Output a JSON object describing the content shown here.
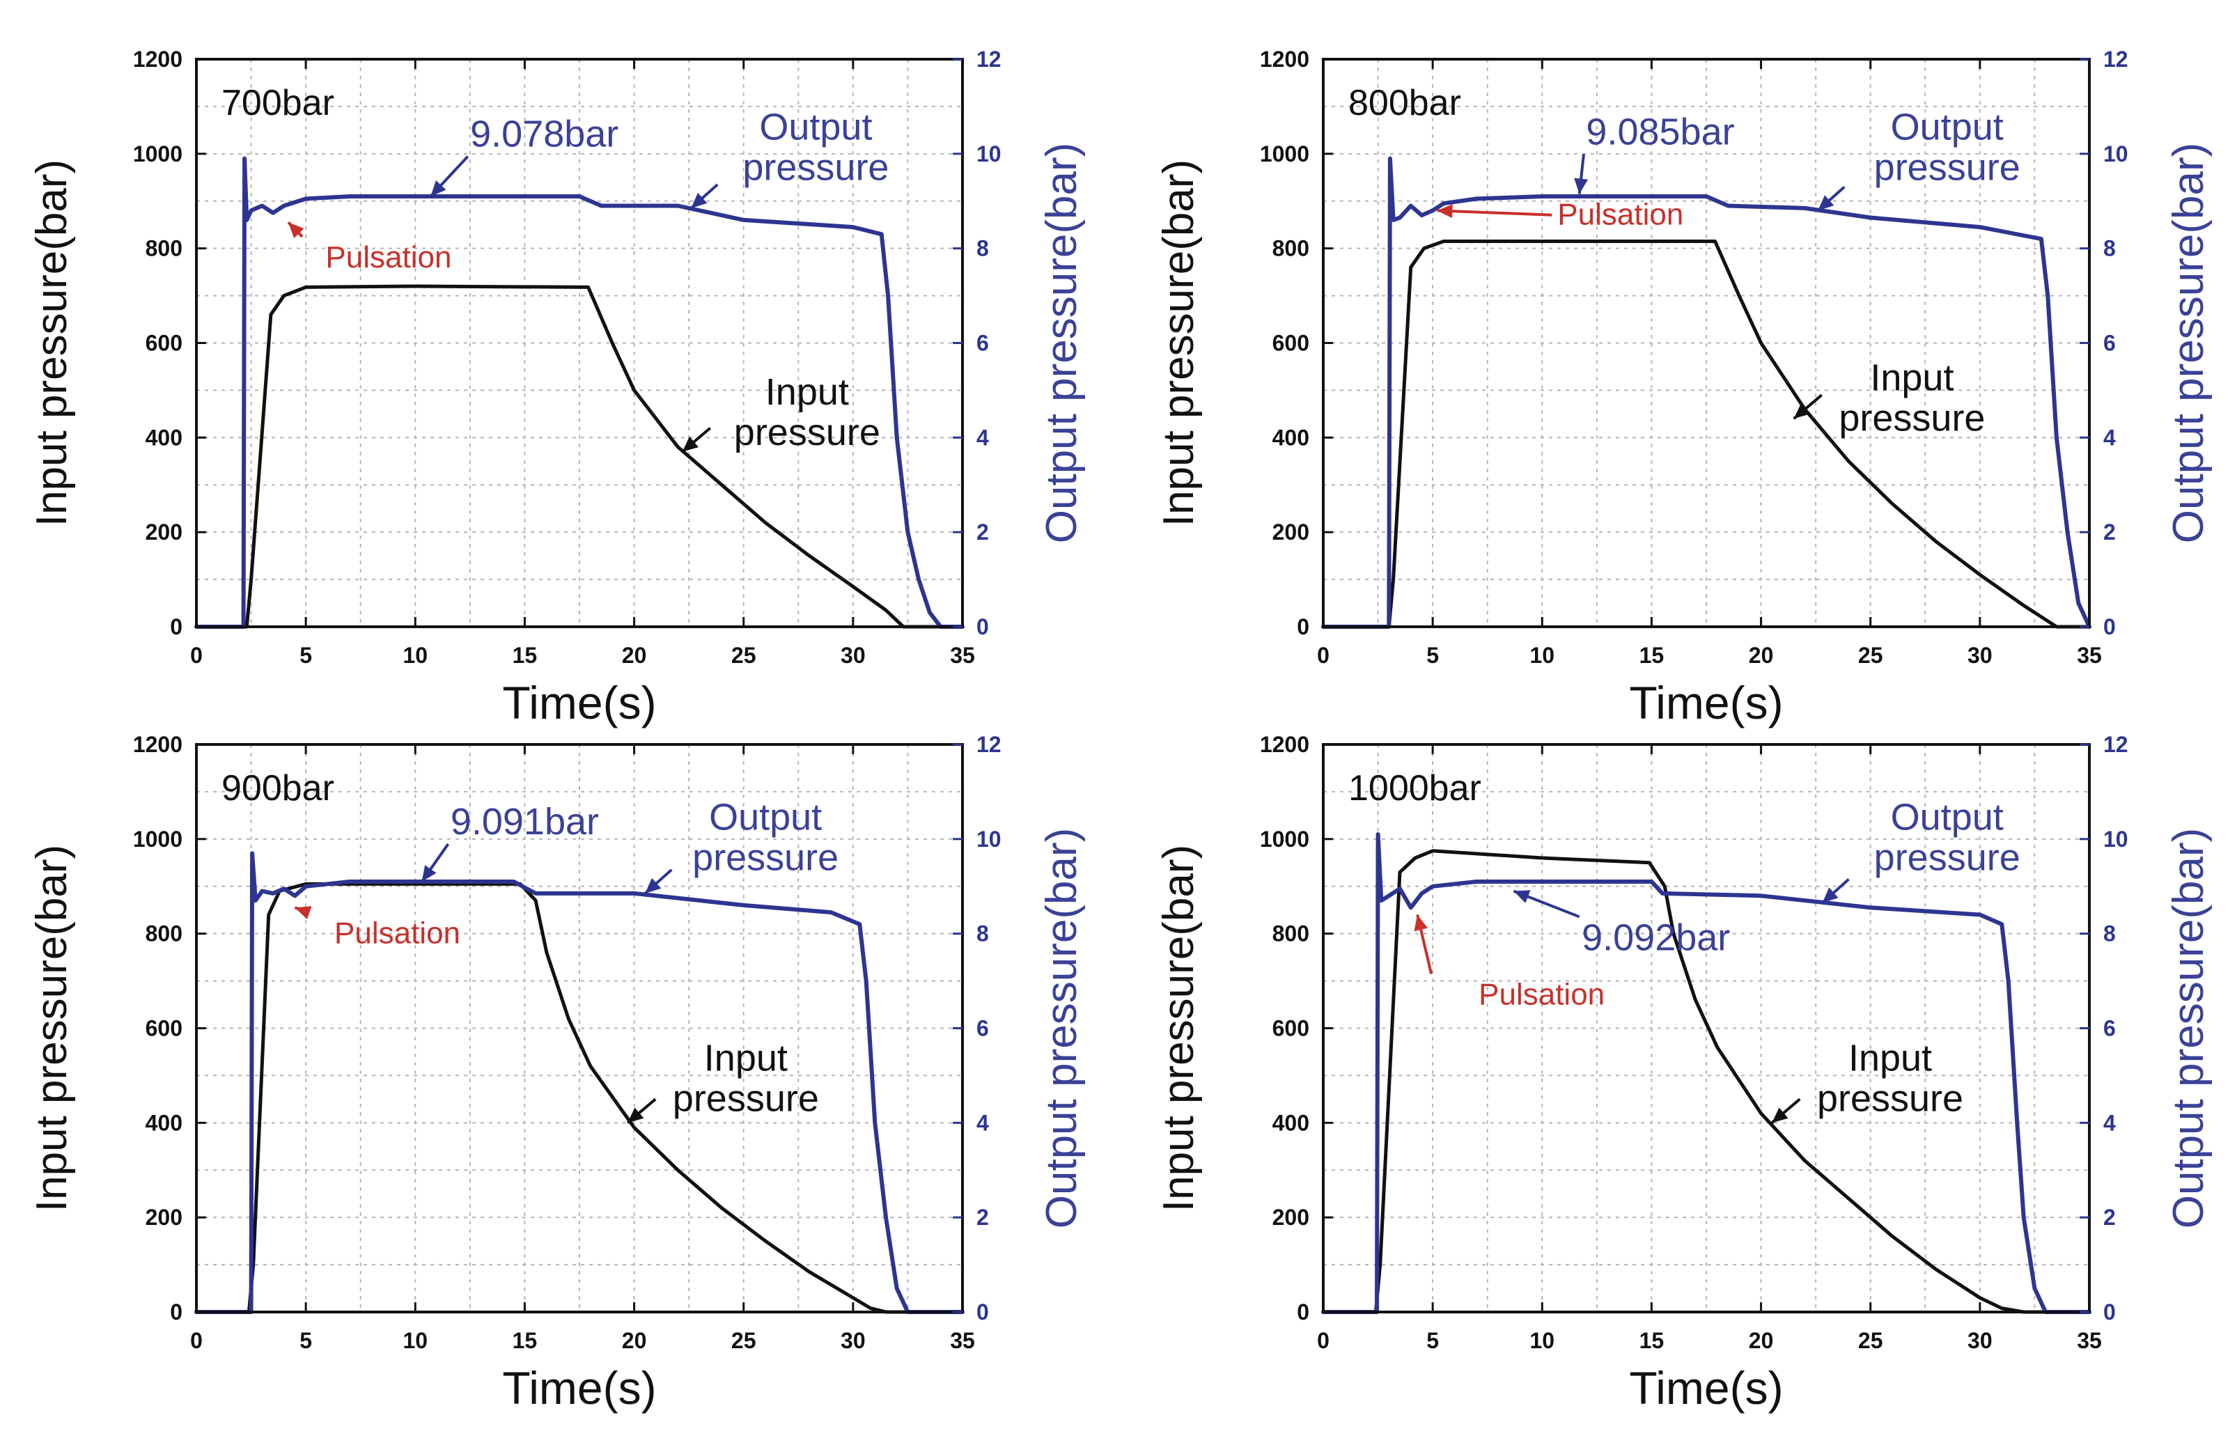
{
  "figure_title": "",
  "chart_data": [
    {
      "type": "line",
      "panel_title": "700bar",
      "xlabel": "Time(s)",
      "ylabel_left": "Input pressure(bar)",
      "ylabel_right": "Output pressure(bar)",
      "xlim": [
        0,
        35
      ],
      "ylim_left": [
        0,
        1200
      ],
      "ylim_right": [
        0,
        12
      ],
      "xticks": [
        "0",
        "5",
        "10",
        "15",
        "20",
        "25",
        "30",
        "35"
      ],
      "yticks_left": [
        "0",
        "200",
        "400",
        "600",
        "800",
        "1000",
        "1200"
      ],
      "yticks_right": [
        "0",
        "2",
        "4",
        "6",
        "8",
        "10",
        "12"
      ],
      "grid": true,
      "colors": {
        "input": "#111111",
        "output": "#2d3590",
        "pulsation": "#c8302a"
      },
      "annotations": {
        "peak_value": {
          "text": "9.078bar",
          "target": [
            10.7,
            9.1
          ],
          "label_pos": [
            15.9,
            10.15
          ]
        },
        "output_label": {
          "line1": "Output",
          "line2": "pressure",
          "target": [
            22.6,
            8.85
          ],
          "label_pos": [
            28.3,
            10.3
          ]
        },
        "pulsation": {
          "text": "Pulsation",
          "target": [
            4.2,
            8.55
          ],
          "label_pos": [
            5.9,
            7.6
          ]
        },
        "input_label": {
          "line1": "Input",
          "line2": "pressure",
          "target": [
            22.2,
            370
          ],
          "label_pos": [
            27.9,
            470
          ]
        }
      },
      "series": [
        {
          "name": "Input pressure",
          "axis": "left",
          "x": [
            0,
            2.3,
            2.5,
            3.4,
            4.0,
            5,
            10,
            17.9,
            19,
            20,
            22,
            24,
            26,
            28,
            30,
            31.5,
            32.3,
            35
          ],
          "y": [
            0,
            0,
            100,
            660,
            700,
            718,
            720,
            718,
            600,
            500,
            380,
            300,
            220,
            150,
            85,
            35,
            0,
            0
          ]
        },
        {
          "name": "Output pressure",
          "axis": "right",
          "x": [
            0,
            2.15,
            2.2,
            2.3,
            2.5,
            3,
            3.5,
            4,
            5,
            7,
            10,
            15,
            17.5,
            18.5,
            22,
            25,
            30,
            31.3,
            31.6,
            32,
            32.5,
            33,
            33.5,
            34,
            35
          ],
          "y": [
            0,
            0,
            9.9,
            8.6,
            8.8,
            8.9,
            8.75,
            8.9,
            9.05,
            9.1,
            9.1,
            9.1,
            9.1,
            8.9,
            8.9,
            8.6,
            8.45,
            8.3,
            7.0,
            4.0,
            2.0,
            1.0,
            0.3,
            0,
            0
          ]
        }
      ]
    },
    {
      "type": "line",
      "panel_title": "800bar",
      "xlabel": "Time(s)",
      "ylabel_left": "Input pressure(bar)",
      "ylabel_right": "Output pressure(bar)",
      "xlim": [
        0,
        35
      ],
      "ylim_left": [
        0,
        1200
      ],
      "ylim_right": [
        0,
        12
      ],
      "xticks": [
        "0",
        "5",
        "10",
        "15",
        "20",
        "25",
        "30",
        "35"
      ],
      "yticks_left": [
        "0",
        "200",
        "400",
        "600",
        "800",
        "1000",
        "1200"
      ],
      "yticks_right": [
        "0",
        "2",
        "4",
        "6",
        "8",
        "10",
        "12"
      ],
      "grid": true,
      "colors": {
        "input": "#111111",
        "output": "#2d3590",
        "pulsation": "#c8302a"
      },
      "annotations": {
        "peak_value": {
          "text": "9.085bar",
          "target": [
            11.7,
            9.15
          ],
          "label_pos": [
            15.4,
            10.2
          ]
        },
        "output_label": {
          "line1": "Output",
          "line2": "pressure",
          "target": [
            22.6,
            8.8
          ],
          "label_pos": [
            28.5,
            10.3
          ]
        },
        "pulsation": {
          "text": "Pulsation",
          "target": [
            5.2,
            8.8
          ],
          "label_pos": [
            10.7,
            8.5
          ]
        },
        "input_label": {
          "line1": "Input",
          "line2": "pressure",
          "target": [
            21.5,
            440
          ],
          "label_pos": [
            26.9,
            500
          ]
        }
      },
      "series": [
        {
          "name": "Input pressure",
          "axis": "left",
          "x": [
            0,
            3.0,
            3.2,
            4.0,
            4.6,
            5.5,
            10,
            17.9,
            19,
            20,
            22,
            24,
            26,
            28,
            30,
            32,
            33.5,
            35
          ],
          "y": [
            0,
            0,
            100,
            760,
            800,
            815,
            815,
            815,
            700,
            600,
            460,
            350,
            260,
            180,
            110,
            45,
            0,
            0
          ]
        },
        {
          "name": "Output pressure",
          "axis": "right",
          "x": [
            0,
            3.0,
            3.05,
            3.2,
            3.5,
            4,
            4.5,
            5,
            5.5,
            7,
            10,
            15,
            17.5,
            18.5,
            22,
            25,
            30,
            32.8,
            33.1,
            33.5,
            34,
            34.5,
            35
          ],
          "y": [
            0,
            0,
            9.9,
            8.6,
            8.65,
            8.9,
            8.7,
            8.8,
            8.95,
            9.05,
            9.1,
            9.1,
            9.1,
            8.9,
            8.85,
            8.65,
            8.45,
            8.2,
            7.0,
            4.0,
            2.0,
            0.5,
            0
          ]
        }
      ]
    },
    {
      "type": "line",
      "panel_title": "900bar",
      "xlabel": "Time(s)",
      "ylabel_left": "Input pressure(bar)",
      "ylabel_right": "Output pressure(bar)",
      "xlim": [
        0,
        35
      ],
      "ylim_left": [
        0,
        1200
      ],
      "ylim_right": [
        0,
        12
      ],
      "xticks": [
        "0",
        "5",
        "10",
        "15",
        "20",
        "25",
        "30",
        "35"
      ],
      "yticks_left": [
        "0",
        "200",
        "400",
        "600",
        "800",
        "1000",
        "1200"
      ],
      "yticks_right": [
        "0",
        "2",
        "4",
        "6",
        "8",
        "10",
        "12"
      ],
      "grid": true,
      "colors": {
        "input": "#111111",
        "output": "#2d3590",
        "pulsation": "#c8302a"
      },
      "annotations": {
        "peak_value": {
          "text": "9.091bar",
          "target": [
            10.3,
            9.1
          ],
          "label_pos": [
            15.0,
            10.1
          ]
        },
        "output_label": {
          "line1": "Output",
          "line2": "pressure",
          "target": [
            20.5,
            8.85
          ],
          "label_pos": [
            26.0,
            10.2
          ]
        },
        "pulsation": {
          "text": "Pulsation",
          "target": [
            4.5,
            8.55
          ],
          "label_pos": [
            6.3,
            7.8
          ]
        },
        "input_label": {
          "line1": "Input",
          "line2": "pressure",
          "target": [
            19.7,
            400
          ],
          "label_pos": [
            25.1,
            510
          ]
        }
      },
      "series": [
        {
          "name": "Input pressure",
          "axis": "left",
          "x": [
            0,
            2.4,
            2.6,
            3.3,
            3.8,
            5,
            10,
            14.8,
            15.5,
            16,
            17,
            18,
            20,
            22,
            24,
            26,
            28,
            30,
            30.8,
            31.5,
            35
          ],
          "y": [
            0,
            0,
            100,
            840,
            890,
            905,
            905,
            905,
            870,
            760,
            620,
            520,
            390,
            300,
            220,
            150,
            85,
            30,
            8,
            0,
            0
          ]
        },
        {
          "name": "Output pressure",
          "axis": "right",
          "x": [
            0,
            2.5,
            2.55,
            2.7,
            3,
            3.5,
            4,
            4.5,
            5,
            7,
            10,
            14.5,
            15.5,
            20,
            25,
            29,
            30.3,
            30.6,
            31,
            31.5,
            32,
            32.5,
            35
          ],
          "y": [
            0,
            0,
            9.7,
            8.7,
            8.9,
            8.85,
            8.95,
            8.8,
            9.0,
            9.1,
            9.1,
            9.1,
            8.85,
            8.85,
            8.6,
            8.45,
            8.2,
            7.0,
            4.0,
            2.0,
            0.5,
            0,
            0
          ]
        }
      ]
    },
    {
      "type": "line",
      "panel_title": "1000bar",
      "xlabel": "Time(s)",
      "ylabel_left": "Input pressure(bar)",
      "ylabel_right": "Output pressure(bar)",
      "xlim": [
        0,
        35
      ],
      "ylim_left": [
        0,
        1200
      ],
      "ylim_right": [
        0,
        12
      ],
      "xticks": [
        "0",
        "5",
        "10",
        "15",
        "20",
        "25",
        "30",
        "35"
      ],
      "yticks_left": [
        "0",
        "200",
        "400",
        "600",
        "800",
        "1000",
        "1200"
      ],
      "yticks_right": [
        "0",
        "2",
        "4",
        "6",
        "8",
        "10",
        "12"
      ],
      "grid": true,
      "colors": {
        "input": "#111111",
        "output": "#2d3590",
        "pulsation": "#c8302a"
      },
      "annotations": {
        "peak_value": {
          "text": "9.092bar",
          "target": [
            8.7,
            8.9
          ],
          "label_pos": [
            15.2,
            7.65
          ]
        },
        "output_label": {
          "line1": "Output",
          "line2": "pressure",
          "target": [
            22.8,
            8.65
          ],
          "label_pos": [
            28.5,
            10.2
          ]
        },
        "pulsation": {
          "text": "Pulsation",
          "target": [
            4.3,
            8.4
          ],
          "label_pos": [
            7.1,
            6.5
          ]
        },
        "input_label": {
          "line1": "Input",
          "line2": "pressure",
          "target": [
            20.5,
            400
          ],
          "label_pos": [
            25.9,
            510
          ]
        }
      },
      "series": [
        {
          "name": "Input pressure",
          "axis": "left",
          "x": [
            0,
            2.4,
            2.6,
            3.5,
            4.2,
            5,
            10,
            14.9,
            15.6,
            16,
            17,
            18,
            20,
            22,
            24,
            26,
            28,
            30,
            31,
            32,
            35
          ],
          "y": [
            0,
            0,
            100,
            930,
            960,
            975,
            960,
            950,
            900,
            800,
            660,
            560,
            420,
            320,
            240,
            160,
            90,
            30,
            8,
            0,
            0
          ]
        },
        {
          "name": "Output pressure",
          "axis": "right",
          "x": [
            0,
            2.45,
            2.5,
            2.65,
            3,
            3.5,
            4,
            4.5,
            5,
            7,
            10,
            15,
            15.5,
            20,
            25,
            30,
            31.0,
            31.3,
            31.7,
            32,
            32.5,
            33,
            35
          ],
          "y": [
            0,
            0,
            10.1,
            8.7,
            8.8,
            8.95,
            8.55,
            8.85,
            9.0,
            9.1,
            9.1,
            9.1,
            8.85,
            8.8,
            8.55,
            8.4,
            8.2,
            7.0,
            4.0,
            2.0,
            0.5,
            0,
            0
          ]
        }
      ]
    }
  ]
}
